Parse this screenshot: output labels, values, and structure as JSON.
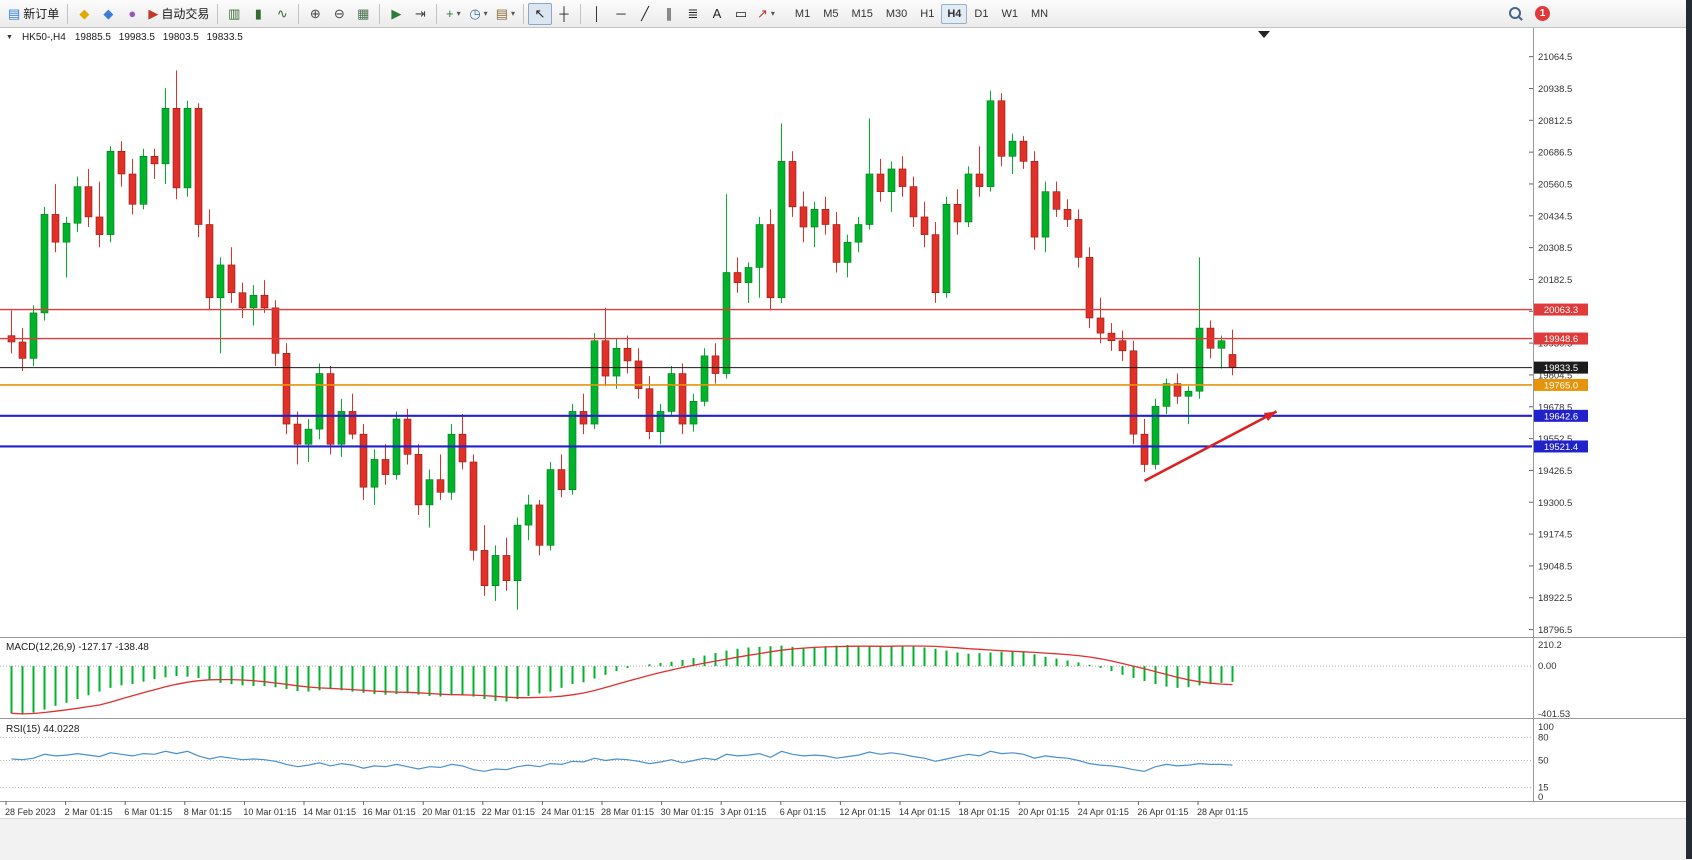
{
  "toolbar": {
    "main_buttons": [
      {
        "name": "new-order-button",
        "glyph": "▤",
        "glyph_color": "#2f7ed8",
        "label": "新订单"
      },
      {
        "type": "sep"
      },
      {
        "name": "new-chart-button",
        "glyph": "◆",
        "glyph_color": "#e0a800"
      },
      {
        "name": "profiles-button",
        "glyph": "◆",
        "glyph_color": "#3b7dd8"
      },
      {
        "name": "community-button",
        "glyph": "●",
        "glyph_color": "#9b59b6"
      },
      {
        "name": "autotrading-button",
        "glyph": "▶",
        "glyph_color": "#c0392b",
        "label": "自动交易"
      },
      {
        "type": "sep"
      },
      {
        "name": "bar-chart-button",
        "glyph": "▥",
        "glyph_color": "#356b2f"
      },
      {
        "name": "candlestick-chart-button",
        "glyph": "▮",
        "glyph_color": "#356b2f"
      },
      {
        "name": "line-chart-button",
        "glyph": "∿",
        "glyph_color": "#356b2f"
      },
      {
        "type": "sep"
      },
      {
        "name": "zoom-in-button",
        "glyph": "⊕",
        "glyph_color": "#444444"
      },
      {
        "name": "zoom-out-button",
        "glyph": "⊖",
        "glyph_color": "#444444"
      },
      {
        "name": "tile-windows-button",
        "glyph": "▦",
        "glyph_color": "#44704a"
      },
      {
        "type": "sep"
      },
      {
        "name": "auto-scroll-button",
        "glyph": "▶",
        "glyph_color": "#2e7d32"
      },
      {
        "name": "chart-shift-button",
        "glyph": "⇥",
        "glyph_color": "#444444"
      },
      {
        "type": "sep"
      },
      {
        "name": "indicators-button",
        "glyph": "+",
        "glyph_color": "#2e7d32",
        "dropdown": true
      },
      {
        "name": "periods-button",
        "glyph": "◷",
        "glyph_color": "#3b6ea5",
        "dropdown": true
      },
      {
        "name": "templates-button",
        "glyph": "▤",
        "glyph_color": "#8a6d3b",
        "dropdown": true
      },
      {
        "type": "sep"
      },
      {
        "name": "cursor-button",
        "glyph": "↖",
        "glyph_color": "#222222",
        "active": true
      },
      {
        "name": "crosshair-button",
        "glyph": "┼",
        "glyph_color": "#222222"
      },
      {
        "type": "sep"
      },
      {
        "name": "vertical-line-button",
        "glyph": "│",
        "glyph_color": "#222222"
      },
      {
        "name": "horizontal-line-button",
        "glyph": "─",
        "glyph_color": "#222222"
      },
      {
        "name": "trendline-button",
        "glyph": "╱",
        "glyph_color": "#222222"
      },
      {
        "name": "channel-button",
        "glyph": "∥",
        "glyph_color": "#222222"
      },
      {
        "name": "fibonacci-button",
        "glyph": "≣",
        "glyph_color": "#222222"
      },
      {
        "name": "text-button",
        "glyph": "A",
        "glyph_color": "#222222"
      },
      {
        "name": "text-label-button",
        "glyph": "▭",
        "glyph_color": "#222222"
      },
      {
        "name": "arrows-button",
        "glyph": "↗",
        "glyph_color": "#c0392b",
        "dropdown": true
      }
    ],
    "timeframes": {
      "items": [
        "M1",
        "M5",
        "M15",
        "M30",
        "H1",
        "H4",
        "D1",
        "W1",
        "MN"
      ],
      "active": "H4"
    },
    "notification_count": "1"
  },
  "chart_data": {
    "type": "candlestick",
    "symbol_period": "HK50-,H4",
    "ohlc_text": "19885.5 19983.5 19803.5 19833.5",
    "last_ohlc": {
      "open": 19885.5,
      "high": 19983.5,
      "low": 19803.5,
      "close": 19833.5
    },
    "colors": {
      "up": "#00b32a",
      "down": "#e03028",
      "accent_red": "#e03a3a",
      "accent_blue": "#2222cc",
      "accent_orange": "#e8940a",
      "bid_black": "#1c1c1c"
    },
    "y_ticks": [
      21064.5,
      20938.5,
      20812.5,
      20686.5,
      20560.5,
      20434.5,
      20308.5,
      20182.5,
      20056.5,
      19930.5,
      19804.5,
      19678.5,
      19552.5,
      19426.5,
      19300.5,
      19174.5,
      19048.5,
      18922.5,
      18796.5
    ],
    "x_labels": [
      "28 Feb 2023",
      "2 Mar 01:15",
      "6 Mar 01:15",
      "8 Mar 01:15",
      "10 Mar 01:15",
      "14 Mar 01:15",
      "16 Mar 01:15",
      "20 Mar 01:15",
      "22 Mar 01:15",
      "24 Mar 01:15",
      "28 Mar 01:15",
      "30 Mar 01:15",
      "3 Apr 01:15",
      "6 Apr 01:15",
      "12 Apr 01:15",
      "14 Apr 01:15",
      "18 Apr 01:15",
      "20 Apr 01:15",
      "24 Apr 01:15",
      "26 Apr 01:15",
      "28 Apr 01:15"
    ],
    "hlines": [
      {
        "label": "20063.3",
        "price": 20063.3,
        "color": "#e03a3a",
        "width": 1.4
      },
      {
        "label": "19948.6",
        "price": 19948.6,
        "color": "#e03a3a",
        "width": 1.4
      },
      {
        "label": "19833.5",
        "price": 19833.5,
        "color": "#1c1c1c",
        "width": 1
      },
      {
        "label": "19765.0",
        "price": 19765.0,
        "color": "#e8940a",
        "width": 1.6
      },
      {
        "label": "19642.6",
        "price": 19642.6,
        "color": "#2222cc",
        "width": 2.2
      },
      {
        "label": "19521.4",
        "price": 19521.4,
        "color": "#2222cc",
        "width": 2.2
      }
    ],
    "arrow": {
      "from": {
        "index": 103,
        "price": 19385
      },
      "to": {
        "index": 115,
        "price": 19660
      },
      "color": "#dd2020"
    },
    "candles": [
      [
        19960,
        20060,
        19890,
        19935
      ],
      [
        19935,
        19990,
        19820,
        19870
      ],
      [
        19870,
        20080,
        19840,
        20050
      ],
      [
        20050,
        20470,
        20020,
        20440
      ],
      [
        20440,
        20560,
        20290,
        20330
      ],
      [
        20330,
        20430,
        20190,
        20405
      ],
      [
        20405,
        20590,
        20370,
        20550
      ],
      [
        20550,
        20620,
        20390,
        20430
      ],
      [
        20430,
        20570,
        20310,
        20360
      ],
      [
        20360,
        20710,
        20330,
        20690
      ],
      [
        20690,
        20730,
        20550,
        20600
      ],
      [
        20600,
        20660,
        20440,
        20480
      ],
      [
        20480,
        20700,
        20460,
        20670
      ],
      [
        20670,
        20700,
        20580,
        20640
      ],
      [
        20640,
        20940,
        20560,
        20860
      ],
      [
        20860,
        21010,
        20500,
        20545
      ],
      [
        20545,
        20890,
        20510,
        20860
      ],
      [
        20860,
        20880,
        20350,
        20400
      ],
      [
        20400,
        20460,
        20060,
        20110
      ],
      [
        20110,
        20270,
        19890,
        20240
      ],
      [
        20240,
        20310,
        20090,
        20130
      ],
      [
        20130,
        20170,
        20030,
        20070
      ],
      [
        20070,
        20160,
        20000,
        20120
      ],
      [
        20120,
        20180,
        20050,
        20070
      ],
      [
        20070,
        20100,
        19840,
        19890
      ],
      [
        19890,
        19930,
        19570,
        19610
      ],
      [
        19610,
        19660,
        19450,
        19530
      ],
      [
        19530,
        19630,
        19460,
        19590
      ],
      [
        19590,
        19850,
        19550,
        19810
      ],
      [
        19810,
        19840,
        19490,
        19530
      ],
      [
        19530,
        19710,
        19480,
        19660
      ],
      [
        19660,
        19730,
        19550,
        19570
      ],
      [
        19570,
        19610,
        19310,
        19360
      ],
      [
        19360,
        19510,
        19290,
        19470
      ],
      [
        19470,
        19530,
        19370,
        19410
      ],
      [
        19410,
        19660,
        19390,
        19630
      ],
      [
        19630,
        19670,
        19450,
        19490
      ],
      [
        19490,
        19530,
        19250,
        19290
      ],
      [
        19290,
        19430,
        19200,
        19390
      ],
      [
        19390,
        19490,
        19310,
        19340
      ],
      [
        19340,
        19610,
        19310,
        19570
      ],
      [
        19570,
        19650,
        19430,
        19460
      ],
      [
        19460,
        19490,
        19070,
        19110
      ],
      [
        19110,
        19210,
        18930,
        18970
      ],
      [
        18970,
        19130,
        18910,
        19090
      ],
      [
        19090,
        19160,
        18950,
        18990
      ],
      [
        18990,
        19240,
        18875,
        19210
      ],
      [
        19210,
        19330,
        19150,
        19290
      ],
      [
        19290,
        19310,
        19090,
        19130
      ],
      [
        19130,
        19460,
        19110,
        19430
      ],
      [
        19430,
        19490,
        19320,
        19350
      ],
      [
        19350,
        19690,
        19330,
        19660
      ],
      [
        19660,
        19730,
        19570,
        19610
      ],
      [
        19610,
        19970,
        19590,
        19940
      ],
      [
        19940,
        20070,
        19760,
        19800
      ],
      [
        19800,
        19950,
        19750,
        19910
      ],
      [
        19910,
        19960,
        19810,
        19860
      ],
      [
        19860,
        19910,
        19710,
        19750
      ],
      [
        19750,
        19800,
        19550,
        19580
      ],
      [
        19580,
        19690,
        19530,
        19660
      ],
      [
        19660,
        19840,
        19640,
        19810
      ],
      [
        19810,
        19850,
        19570,
        19610
      ],
      [
        19610,
        19730,
        19580,
        19700
      ],
      [
        19700,
        19910,
        19680,
        19880
      ],
      [
        19880,
        19930,
        19770,
        19810
      ],
      [
        19810,
        20520,
        19790,
        20210
      ],
      [
        20210,
        20270,
        20130,
        20170
      ],
      [
        20170,
        20250,
        20090,
        20230
      ],
      [
        20230,
        20430,
        20110,
        20400
      ],
      [
        20400,
        20460,
        20060,
        20110
      ],
      [
        20110,
        20800,
        20090,
        20650
      ],
      [
        20650,
        20690,
        20430,
        20470
      ],
      [
        20470,
        20530,
        20330,
        20390
      ],
      [
        20390,
        20490,
        20310,
        20460
      ],
      [
        20460,
        20510,
        20360,
        20400
      ],
      [
        20400,
        20450,
        20210,
        20250
      ],
      [
        20250,
        20360,
        20190,
        20330
      ],
      [
        20330,
        20430,
        20290,
        20400
      ],
      [
        20400,
        20820,
        20380,
        20600
      ],
      [
        20600,
        20660,
        20490,
        20530
      ],
      [
        20530,
        20650,
        20450,
        20620
      ],
      [
        20620,
        20670,
        20510,
        20550
      ],
      [
        20550,
        20590,
        20390,
        20430
      ],
      [
        20430,
        20490,
        20310,
        20360
      ],
      [
        20360,
        20410,
        20090,
        20130
      ],
      [
        20130,
        20510,
        20110,
        20480
      ],
      [
        20480,
        20540,
        20360,
        20410
      ],
      [
        20410,
        20630,
        20390,
        20600
      ],
      [
        20600,
        20710,
        20510,
        20550
      ],
      [
        20550,
        20930,
        20530,
        20890
      ],
      [
        20890,
        20920,
        20630,
        20670
      ],
      [
        20670,
        20760,
        20600,
        20730
      ],
      [
        20730,
        20750,
        20620,
        20650
      ],
      [
        20650,
        20690,
        20300,
        20350
      ],
      [
        20350,
        20570,
        20290,
        20530
      ],
      [
        20530,
        20570,
        20430,
        20460
      ],
      [
        20460,
        20500,
        20390,
        20420
      ],
      [
        20420,
        20460,
        20230,
        20270
      ],
      [
        20270,
        20310,
        19990,
        20030
      ],
      [
        20030,
        20110,
        19930,
        19970
      ],
      [
        19970,
        20010,
        19900,
        19940
      ],
      [
        19940,
        19980,
        19860,
        19900
      ],
      [
        19900,
        19940,
        19530,
        19570
      ],
      [
        19570,
        19630,
        19420,
        19450
      ],
      [
        19450,
        19710,
        19430,
        19680
      ],
      [
        19680,
        19790,
        19650,
        19770
      ],
      [
        19770,
        19810,
        19690,
        19720
      ],
      [
        19720,
        19760,
        19610,
        19740
      ],
      [
        19740,
        20270,
        19710,
        19990
      ],
      [
        19990,
        20020,
        19870,
        19910
      ],
      [
        19910,
        19960,
        19830,
        19940
      ],
      [
        19885.5,
        19983.5,
        19803.5,
        19833.5
      ]
    ],
    "indicators": [
      {
        "name": "MACD",
        "label": "MACD(12,26,9) -127.17 -138.48",
        "current": {
          "macd": -127.17,
          "signal": -138.48
        },
        "signal_period": 9,
        "range": {
          "max": 210.2,
          "min": -401.53
        },
        "axis_labels": [
          "210.2",
          "0.00",
          "-401.53"
        ],
        "values": [
          -380,
          -390,
          -375,
          -350,
          -320,
          -295,
          -265,
          -235,
          -205,
          -175,
          -155,
          -145,
          -125,
          -105,
          -90,
          -80,
          -85,
          -95,
          -115,
          -135,
          -145,
          -155,
          -160,
          -160,
          -170,
          -185,
          -200,
          -205,
          -195,
          -185,
          -195,
          -205,
          -215,
          -225,
          -230,
          -225,
          -220,
          -230,
          -240,
          -245,
          -235,
          -230,
          -245,
          -265,
          -280,
          -285,
          -265,
          -240,
          -220,
          -205,
          -175,
          -145,
          -130,
          -100,
          -70,
          -40,
          -15,
          0,
          15,
          25,
          35,
          50,
          65,
          85,
          105,
          125,
          140,
          150,
          155,
          160,
          165,
          155,
          150,
          155,
          160,
          165,
          170,
          165,
          160,
          155,
          160,
          165,
          160,
          150,
          140,
          125,
          110,
          100,
          105,
          110,
          115,
          120,
          110,
          95,
          75,
          60,
          45,
          30,
          10,
          -15,
          -40,
          -70,
          -95,
          -120,
          -145,
          -165,
          -175,
          -170,
          -155,
          -145,
          -135,
          -127.17
        ]
      },
      {
        "name": "RSI",
        "label": "RSI(15) 44.0228",
        "current": 44.0228,
        "range": {
          "max": 100,
          "min": 0
        },
        "levels": [
          80,
          50,
          15
        ],
        "axis_labels": [
          "100",
          "80",
          "50",
          "15",
          "0"
        ],
        "values": [
          52,
          51,
          53,
          58,
          56,
          57,
          59,
          57,
          55,
          60,
          58,
          56,
          59,
          58,
          62,
          59,
          62,
          56,
          52,
          55,
          53,
          51,
          52,
          51,
          49,
          45,
          42,
          44,
          47,
          43,
          46,
          44,
          40,
          43,
          42,
          45,
          42,
          39,
          42,
          41,
          45,
          43,
          38,
          36,
          39,
          38,
          42,
          44,
          42,
          46,
          45,
          49,
          48,
          53,
          50,
          52,
          51,
          49,
          46,
          48,
          51,
          47,
          50,
          53,
          51,
          58,
          56,
          57,
          59,
          54,
          62,
          58,
          56,
          57,
          56,
          53,
          55,
          57,
          61,
          58,
          60,
          58,
          55,
          53,
          49,
          52,
          55,
          58,
          56,
          62,
          59,
          60,
          58,
          53,
          56,
          54,
          53,
          50,
          46,
          44,
          43,
          41,
          38,
          36,
          42,
          45,
          43,
          44,
          46,
          45,
          45,
          44.02
        ]
      }
    ]
  }
}
